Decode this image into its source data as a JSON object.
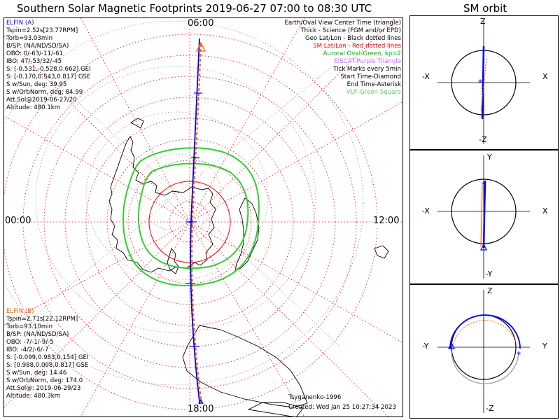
{
  "header": {
    "title": "Southern Solar Magnetic Footprints 2019-06-27 07:00 to 08:30 UTC",
    "orbit_title": "SM orbit"
  },
  "probe_a": {
    "name": "ELFIN (A)",
    "color": "#0000ff",
    "lines": [
      "Tspin=2.52s[23.77RPM]",
      "Torb=93.03min",
      "B/SP: (NA/ND/SD/SA)",
      "OBO: 0/-63/-11/-61",
      "IBO: 47/-53/32/-45",
      "S: [-0.531,-0.528,0.662] GEI",
      "S: [-0.170,0.543,0.817] GSE",
      "S w/Sun, deg: 39.95",
      "S w/OrbNorm, deg: 84.99",
      "Att.Sol@2019-06-27/20",
      "Altitude: 480.1km"
    ]
  },
  "probe_b": {
    "name": "ELFIN (B)",
    "color": "#ff6600",
    "lines": [
      "Tspin=2.71s[22.12RPM]",
      "Torb=93.10min",
      "B/SP: (NA/ND/SD/SA)",
      "OBO: -7/-1/-9/-5",
      "IBO: -4/2/-6/-7",
      "S: [-0.099,0.983,0.154] GEI",
      "S: [0.988,0.008,0.817] GSE",
      "S w/Sun, deg: 14.46",
      "S w/OrbNorm, deg: 174.0",
      "Att.Sol@: 2019-06-29/23",
      "Altitude: 480.3km"
    ]
  },
  "legend": [
    {
      "text": "Earth/Oval View Center Time (triangle)",
      "color": "#000000"
    },
    {
      "text": "Thick - Science (FGM and/or EPD)",
      "color": "#000000"
    },
    {
      "text": "Geo Lat/Lon - Black dotted lines",
      "color": "#000000"
    },
    {
      "text": "SM Lat/Lon - Red dotted lines",
      "color": "#ff0000"
    },
    {
      "text": "Auroral Oval-Green, kp=2",
      "color": "#00bb00"
    },
    {
      "text": "EISCAT-Purple Triangle",
      "color": "#cc66ff"
    },
    {
      "text": "Tick Marks every 5min",
      "color": "#000000"
    },
    {
      "text": "Start Time-Diamond",
      "color": "#000000"
    },
    {
      "text": "End Time-Asterisk",
      "color": "#000000"
    },
    {
      "text": "VLF-Green Square",
      "color": "#66cc66"
    }
  ],
  "credits": {
    "author": "Tsyganenko-1996",
    "created": "Created: Wed Jan 25 10:27:34 2023"
  },
  "hour_labels": {
    "top": "06:00",
    "left": "00:00",
    "right": "12:00",
    "bottom": "18:00"
  },
  "orbit_panels": [
    {
      "top": "Z",
      "bottom": "-Z",
      "left": "-X",
      "right": "X"
    },
    {
      "top": "Y",
      "bottom": "-Y",
      "left": "-X",
      "right": "X"
    },
    {
      "top": "Z",
      "bottom": "-Z",
      "left": "-Y",
      "right": "Y"
    }
  ],
  "colors": {
    "probe_a": "#0000ff",
    "probe_b": "#ff6600",
    "grid_sm": "#ff0000",
    "oval": "#33cc33"
  }
}
